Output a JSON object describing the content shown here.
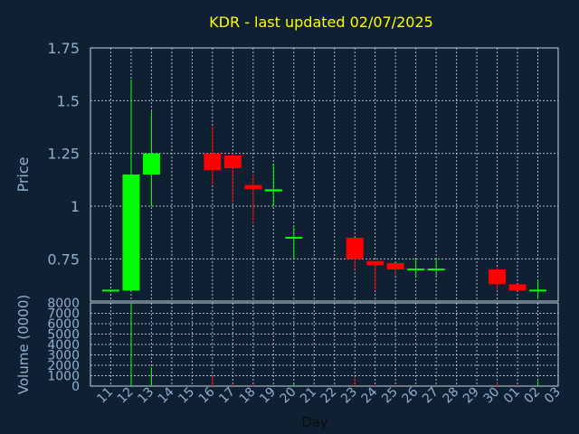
{
  "theme": {
    "background": "#0f2033",
    "title_color": "#ffff00",
    "axis_text_color": "#8fb0d0",
    "grid_color": "#c8d2dc",
    "up_color": "#00ff00",
    "down_color": "#ff0000"
  },
  "chart_data": {
    "type": "candlestick",
    "title": "KDR - last updated 02/07/2025",
    "price_axis": {
      "label": "Price",
      "ylim": [
        0.55,
        1.75
      ],
      "ticks": [
        0.75,
        1.0,
        1.25,
        1.5,
        1.75
      ],
      "tick_labels": [
        "0.75",
        "1",
        "1.25",
        "1.5",
        "1.75"
      ]
    },
    "volume_axis": {
      "label": "Volume (0000)",
      "ylim": [
        0,
        8000
      ],
      "ticks": [
        0,
        1000,
        2000,
        3000,
        4000,
        5000,
        6000,
        7000,
        8000
      ],
      "tick_labels": [
        "0",
        "1000",
        "2000",
        "3000",
        "4000",
        "5000",
        "6000",
        "7000",
        "8000"
      ]
    },
    "x_axis": {
      "label": "Day",
      "tick_labels": [
        "11",
        "12",
        "13",
        "14",
        "15",
        "16",
        "17",
        "18",
        "19",
        "20",
        "21",
        "22",
        "23",
        "24",
        "25",
        "26",
        "27",
        "28",
        "29",
        "30",
        "01",
        "02",
        "03"
      ]
    },
    "candles": [
      {
        "day": "11",
        "open": 0.6,
        "high": 0.6,
        "low": 0.6,
        "close": 0.6,
        "volume": 0
      },
      {
        "day": "12",
        "open": 0.6,
        "high": 1.6,
        "low": 0.6,
        "close": 1.15,
        "volume": 8000
      },
      {
        "day": "13",
        "open": 1.15,
        "high": 1.45,
        "low": 1.0,
        "close": 1.25,
        "volume": 1800
      },
      {
        "day": "16",
        "open": 1.25,
        "high": 1.38,
        "low": 1.1,
        "close": 1.17,
        "volume": 900
      },
      {
        "day": "17",
        "open": 1.24,
        "high": 1.25,
        "low": 1.02,
        "close": 1.18,
        "volume": 200
      },
      {
        "day": "18",
        "open": 1.1,
        "high": 1.15,
        "low": 0.92,
        "close": 1.08,
        "volume": 150
      },
      {
        "day": "19",
        "open": 1.07,
        "high": 1.2,
        "low": 1.0,
        "close": 1.08,
        "volume": 100
      },
      {
        "day": "20",
        "open": 0.85,
        "high": 0.9,
        "low": 0.75,
        "close": 0.85,
        "volume": 300
      },
      {
        "day": "23",
        "open": 0.85,
        "high": 0.85,
        "low": 0.7,
        "close": 0.75,
        "volume": 800
      },
      {
        "day": "24",
        "open": 0.74,
        "high": 0.74,
        "low": 0.6,
        "close": 0.72,
        "volume": 150
      },
      {
        "day": "25",
        "open": 0.73,
        "high": 0.73,
        "low": 0.67,
        "close": 0.7,
        "volume": 100
      },
      {
        "day": "26",
        "open": 0.7,
        "high": 0.75,
        "low": 0.66,
        "close": 0.7,
        "volume": 80
      },
      {
        "day": "27",
        "open": 0.7,
        "high": 0.75,
        "low": 0.67,
        "close": 0.7,
        "volume": 80
      },
      {
        "day": "30",
        "open": 0.7,
        "high": 0.71,
        "low": 0.6,
        "close": 0.63,
        "volume": 300
      },
      {
        "day": "01",
        "open": 0.63,
        "high": 0.63,
        "low": 0.6,
        "close": 0.6,
        "volume": 150
      },
      {
        "day": "02",
        "open": 0.6,
        "high": 0.65,
        "low": 0.56,
        "close": 0.6,
        "volume": 500
      }
    ]
  }
}
